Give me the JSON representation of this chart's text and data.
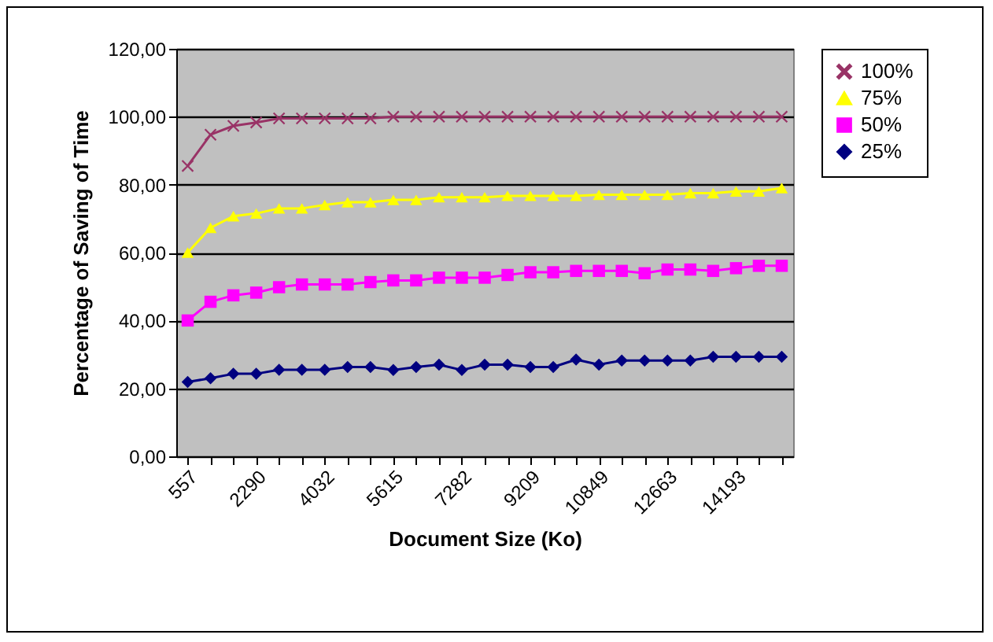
{
  "chart_data": {
    "type": "line",
    "xlabel": "Document Size (Ko)",
    "ylabel": "Percentage of Saving of Time",
    "categories": [
      "557",
      null,
      null,
      "2290",
      null,
      null,
      "4032",
      null,
      null,
      "5615",
      null,
      null,
      "7282",
      null,
      null,
      "9209",
      null,
      null,
      "10849",
      null,
      null,
      "12663",
      null,
      null,
      "14193",
      null,
      null
    ],
    "series": [
      {
        "name": "100%",
        "color": "#993366",
        "marker": "cross",
        "values": [
          85.5,
          94.7,
          97.3,
          98.3,
          99.5,
          99.5,
          99.5,
          99.5,
          99.5,
          100,
          100,
          100,
          100,
          100,
          100,
          100,
          100,
          100,
          100,
          100,
          100,
          100,
          100,
          100,
          100,
          100,
          100
        ]
      },
      {
        "name": "75%",
        "color": "#ffff00",
        "marker": "triangle",
        "values": [
          60,
          67.3,
          70.7,
          71.5,
          73,
          73,
          74,
          74.8,
          74.8,
          75.5,
          75.5,
          76.3,
          76.3,
          76.3,
          76.7,
          76.7,
          76.7,
          76.7,
          77,
          77,
          77,
          77,
          77.5,
          77.5,
          78,
          78,
          79
        ]
      },
      {
        "name": "50%",
        "color": "#ff00ff",
        "marker": "square",
        "values": [
          40,
          45.5,
          47.4,
          48.2,
          49.8,
          50.6,
          50.6,
          50.6,
          51.3,
          51.8,
          51.8,
          52.6,
          52.6,
          52.6,
          53.4,
          54.2,
          54.2,
          54.6,
          54.6,
          54.6,
          53.9,
          55,
          55,
          54.6,
          55.4,
          56.1,
          56.1
        ]
      },
      {
        "name": "25%",
        "color": "#000080",
        "marker": "diamond",
        "values": [
          21.9,
          23,
          24.3,
          24.3,
          25.5,
          25.5,
          25.5,
          26.3,
          26.3,
          25.4,
          26.3,
          27,
          25.4,
          27,
          27,
          26.3,
          26.3,
          28.5,
          27,
          28.2,
          28.2,
          28.2,
          28.2,
          29.3,
          29.3,
          29.3,
          29.3
        ]
      }
    ],
    "ylim": [
      0,
      120
    ],
    "yticks": [
      {
        "value": 0,
        "label": "0,00"
      },
      {
        "value": 20,
        "label": "20,00"
      },
      {
        "value": 40,
        "label": "40,00"
      },
      {
        "value": 60,
        "label": "60,00"
      },
      {
        "value": 80,
        "label": "80,00"
      },
      {
        "value": 100,
        "label": "100,00"
      },
      {
        "value": 120,
        "label": "120,00"
      }
    ],
    "grid": "y",
    "legend": "right"
  }
}
